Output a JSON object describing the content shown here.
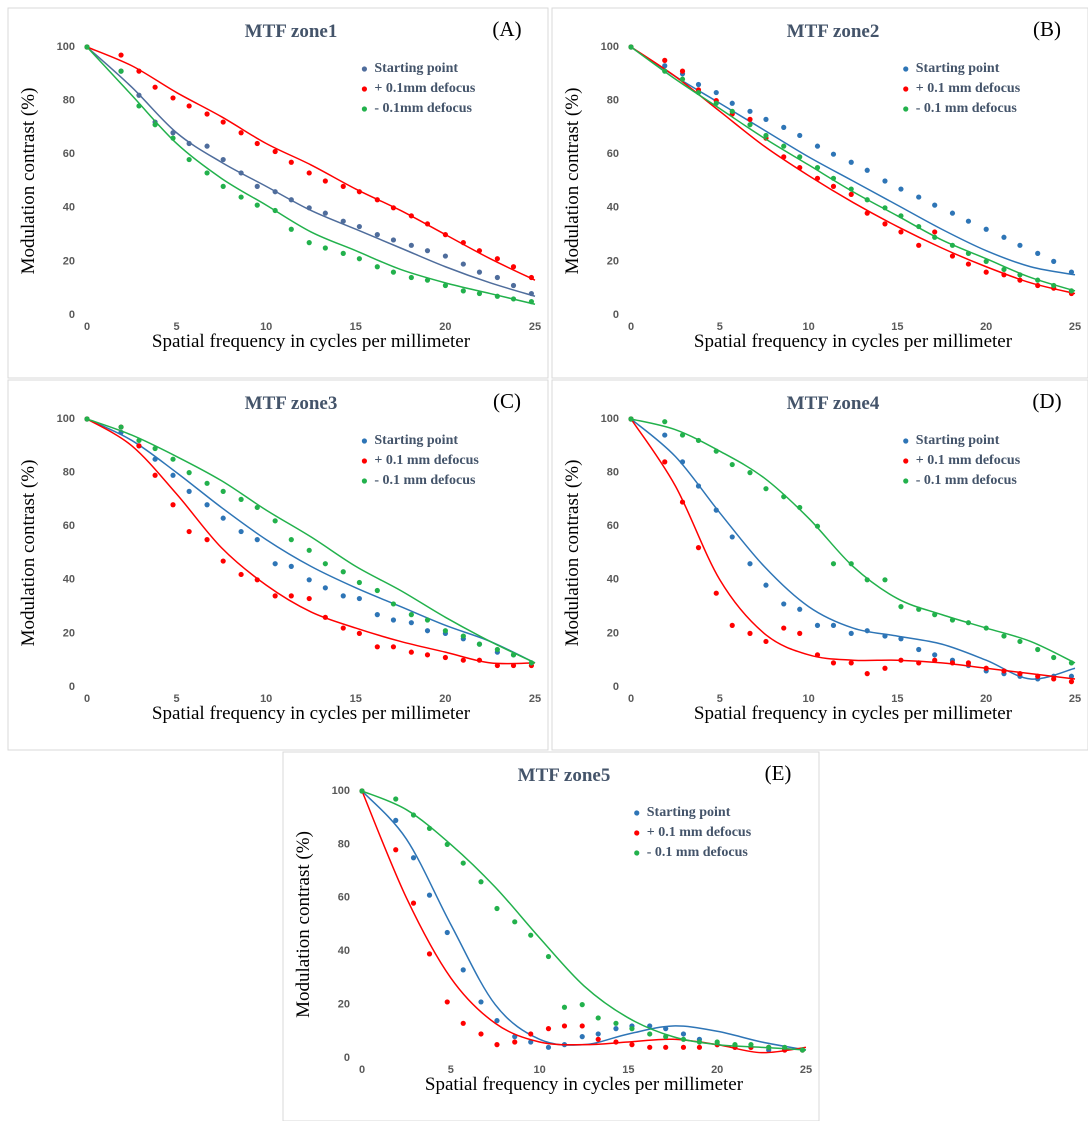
{
  "chart_data": [
    {
      "type": "scatter",
      "title": "MTF zone1",
      "label": "(A)",
      "x_label": "Spatial frequency in cycles per millimeter",
      "y_label": "Modulation contrast (%)",
      "xlim": [
        0,
        25
      ],
      "ylim": [
        0,
        100
      ],
      "xticks": [
        0,
        5,
        10,
        15,
        20,
        25
      ],
      "yticks": [
        0,
        20,
        40,
        60,
        80,
        100
      ],
      "x": [
        0,
        1.9,
        2.9,
        3.8,
        4.8,
        5.7,
        6.7,
        7.6,
        8.6,
        9.5,
        10.5,
        11.4,
        12.4,
        13.3,
        14.3,
        15.2,
        16.2,
        17.1,
        18.1,
        19.0,
        20.0,
        21.0,
        21.9,
        22.9,
        23.8,
        24.8
      ],
      "fit_x": [
        0,
        2.5,
        5,
        7.5,
        10,
        12.5,
        15,
        17.5,
        20,
        22.5,
        25
      ],
      "series": [
        {
          "name": "Starting point",
          "color": "#4f6d9c",
          "values": [
            100,
            91,
            82,
            72,
            68,
            64,
            63,
            58,
            53,
            48,
            46,
            43,
            40,
            38,
            35,
            33,
            30,
            28,
            26,
            24,
            22,
            19,
            16,
            14,
            11,
            8
          ],
          "fit": [
            100,
            85,
            68,
            57,
            48,
            39,
            32,
            25,
            18,
            12,
            7
          ]
        },
        {
          "name": "+ 0.1mm defocus",
          "color": "#ff0000",
          "values": [
            100,
            97,
            91,
            85,
            81,
            78,
            75,
            72,
            68,
            64,
            61,
            57,
            53,
            50,
            48,
            46,
            43,
            40,
            37,
            34,
            30,
            27,
            24,
            21,
            18,
            14
          ],
          "fit": [
            100,
            93,
            83,
            74,
            64,
            56,
            47,
            39,
            30,
            21,
            13
          ]
        },
        {
          "name": "- 0.1mm defocus",
          "color": "#22b14c",
          "values": [
            100,
            91,
            78,
            71,
            66,
            58,
            53,
            48,
            44,
            41,
            39,
            32,
            27,
            25,
            23,
            21,
            18,
            16,
            14,
            13,
            11,
            9,
            8,
            7,
            6,
            5
          ],
          "fit": [
            100,
            82,
            64,
            51,
            41,
            31,
            24,
            17,
            12,
            8,
            4
          ]
        }
      ]
    },
    {
      "type": "scatter",
      "title": "MTF zone2",
      "label": "(B)",
      "x_label": "Spatial frequency in cycles per millimeter",
      "y_label": "Modulation contrast (%)",
      "xlim": [
        0,
        25
      ],
      "ylim": [
        0,
        100
      ],
      "xticks": [
        0,
        5,
        10,
        15,
        20,
        25
      ],
      "yticks": [
        0,
        20,
        40,
        60,
        80,
        100
      ],
      "x": [
        0,
        1.9,
        2.9,
        3.8,
        4.8,
        5.7,
        6.7,
        7.6,
        8.6,
        9.5,
        10.5,
        11.4,
        12.4,
        13.3,
        14.3,
        15.2,
        16.2,
        17.1,
        18.1,
        19.0,
        20.0,
        21.0,
        21.9,
        22.9,
        23.8,
        24.8
      ],
      "fit_x": [
        0,
        2.5,
        5,
        7.5,
        10,
        12.5,
        15,
        17.5,
        20,
        22.5,
        25
      ],
      "series": [
        {
          "name": "Starting point",
          "color": "#2e75b6",
          "values": [
            100,
            93,
            90,
            86,
            83,
            79,
            76,
            73,
            70,
            67,
            63,
            60,
            57,
            54,
            50,
            47,
            44,
            41,
            38,
            35,
            32,
            29,
            26,
            23,
            20,
            16
          ],
          "fit": [
            100,
            89,
            79,
            69,
            59,
            50,
            41,
            32,
            24,
            18,
            15
          ]
        },
        {
          "name": "+ 0.1 mm defocus",
          "color": "#ff0000",
          "values": [
            100,
            95,
            91,
            84,
            80,
            75,
            73,
            66,
            59,
            55,
            51,
            48,
            45,
            38,
            34,
            31,
            26,
            31,
            22,
            19,
            16,
            15,
            13,
            11,
            10,
            8
          ],
          "fit": [
            100,
            89,
            76,
            63,
            52,
            42,
            33,
            25,
            18,
            12,
            8
          ]
        },
        {
          "name": "- 0.1 mm defocus",
          "color": "#22b14c",
          "values": [
            100,
            91,
            88,
            83,
            79,
            76,
            71,
            67,
            63,
            59,
            55,
            51,
            47,
            43,
            40,
            37,
            33,
            29,
            26,
            23,
            20,
            17,
            15,
            13,
            11,
            9
          ],
          "fit": [
            100,
            88,
            77,
            66,
            56,
            46,
            37,
            28,
            21,
            14,
            9
          ]
        }
      ]
    },
    {
      "type": "scatter",
      "title": "MTF zone3",
      "label": "(C)",
      "x_label": "Spatial frequency in cycles per millimeter",
      "y_label": "Modulation contrast (%)",
      "xlim": [
        0,
        25
      ],
      "ylim": [
        0,
        100
      ],
      "xticks": [
        0,
        5,
        10,
        15,
        20,
        25
      ],
      "yticks": [
        0,
        20,
        40,
        60,
        80,
        100
      ],
      "x": [
        0,
        1.9,
        2.9,
        3.8,
        4.8,
        5.7,
        6.7,
        7.6,
        8.6,
        9.5,
        10.5,
        11.4,
        12.4,
        13.3,
        14.3,
        15.2,
        16.2,
        17.1,
        18.1,
        19.0,
        20.0,
        21.0,
        21.9,
        22.9,
        23.8,
        24.8
      ],
      "fit_x": [
        0,
        2.5,
        5,
        7.5,
        10,
        12.5,
        15,
        17.5,
        20,
        22.5,
        25
      ],
      "series": [
        {
          "name": "Starting point",
          "color": "#2e75b6",
          "values": [
            100,
            95,
            90,
            85,
            79,
            73,
            68,
            63,
            58,
            55,
            46,
            45,
            40,
            37,
            34,
            33,
            27,
            25,
            24,
            21,
            20,
            18,
            16,
            13,
            12,
            9
          ],
          "fit": [
            100,
            92,
            80,
            67,
            55,
            45,
            37,
            30,
            23,
            17,
            9
          ]
        },
        {
          "name": "+ 0.1 mm defocus",
          "color": "#ff0000",
          "values": [
            100,
            97,
            90,
            79,
            68,
            58,
            55,
            47,
            42,
            40,
            34,
            34,
            33,
            26,
            22,
            20,
            15,
            15,
            13,
            12,
            11,
            10,
            10,
            8,
            8,
            8
          ],
          "fit": [
            100,
            90,
            72,
            52,
            38,
            28,
            22,
            17,
            13,
            9,
            9
          ]
        },
        {
          "name": "- 0.1 mm defocus",
          "color": "#22b14c",
          "values": [
            100,
            97,
            92,
            89,
            85,
            80,
            76,
            73,
            70,
            67,
            62,
            55,
            51,
            46,
            43,
            39,
            36,
            31,
            27,
            25,
            21,
            19,
            16,
            14,
            12,
            9
          ],
          "fit": [
            100,
            94,
            86,
            77,
            66,
            56,
            45,
            36,
            26,
            17,
            9
          ]
        }
      ]
    },
    {
      "type": "scatter",
      "title": "MTF zone4",
      "label": "(D)",
      "x_label": "Spatial frequency in cycles per millimeter",
      "y_label": "Modulation contrast (%)",
      "xlim": [
        0,
        25
      ],
      "ylim": [
        0,
        100
      ],
      "xticks": [
        0,
        5,
        10,
        15,
        20,
        25
      ],
      "yticks": [
        0,
        20,
        40,
        60,
        80,
        100
      ],
      "x": [
        0,
        1.9,
        2.9,
        3.8,
        4.8,
        5.7,
        6.7,
        7.6,
        8.6,
        9.5,
        10.5,
        11.4,
        12.4,
        13.3,
        14.3,
        15.2,
        16.2,
        17.1,
        18.1,
        19.0,
        20.0,
        21.0,
        21.9,
        22.9,
        23.8,
        24.8
      ],
      "fit_x": [
        0,
        2.5,
        5,
        7.5,
        10,
        12.5,
        15,
        17.5,
        20,
        22.5,
        25
      ],
      "series": [
        {
          "name": "Starting point",
          "color": "#2e75b6",
          "values": [
            100,
            94,
            84,
            75,
            66,
            56,
            46,
            38,
            31,
            29,
            23,
            23,
            20,
            21,
            19,
            18,
            14,
            12,
            10,
            8,
            6,
            5,
            4,
            3,
            4,
            4
          ],
          "fit": [
            100,
            86,
            65,
            45,
            30,
            22,
            19,
            16,
            10,
            3,
            7
          ]
        },
        {
          "name": "+ 0.1 mm defocus",
          "color": "#ff0000",
          "values": [
            100,
            84,
            69,
            52,
            35,
            23,
            20,
            17,
            22,
            20,
            12,
            9,
            9,
            5,
            7,
            10,
            9,
            10,
            9,
            9,
            7,
            6,
            5,
            4,
            3,
            2
          ],
          "fit": [
            100,
            75,
            40,
            20,
            12,
            10,
            10,
            9,
            7,
            5,
            3
          ]
        },
        {
          "name": "- 0.1 mm defocus",
          "color": "#22b14c",
          "values": [
            100,
            99,
            94,
            92,
            88,
            83,
            80,
            74,
            71,
            67,
            60,
            46,
            46,
            40,
            40,
            30,
            29,
            27,
            25,
            24,
            22,
            19,
            17,
            14,
            11,
            9
          ],
          "fit": [
            100,
            96,
            88,
            78,
            63,
            45,
            33,
            27,
            22,
            17,
            9
          ]
        }
      ]
    },
    {
      "type": "scatter",
      "title": "MTF zone5",
      "label": "(E)",
      "x_label": "Spatial frequency in cycles per millimeter",
      "y_label": "Modulation contrast (%)",
      "xlim": [
        0,
        25
      ],
      "ylim": [
        0,
        100
      ],
      "xticks": [
        0,
        5,
        10,
        15,
        20,
        25
      ],
      "yticks": [
        0,
        20,
        40,
        60,
        80,
        100
      ],
      "x": [
        0,
        1.9,
        2.9,
        3.8,
        4.8,
        5.7,
        6.7,
        7.6,
        8.6,
        9.5,
        10.5,
        11.4,
        12.4,
        13.3,
        14.3,
        15.2,
        16.2,
        17.1,
        18.1,
        19.0,
        20.0,
        21.0,
        21.9,
        22.9,
        23.8,
        24.8
      ],
      "fit_x": [
        0,
        2.5,
        5,
        7.5,
        10,
        12.5,
        15,
        17.5,
        20,
        22.5,
        25
      ],
      "series": [
        {
          "name": "Starting point",
          "color": "#2e75b6",
          "values": [
            100,
            89,
            75,
            61,
            47,
            33,
            21,
            14,
            8,
            6,
            4,
            5,
            8,
            9,
            11,
            12,
            12,
            11,
            9,
            7,
            5,
            4,
            4,
            3,
            3,
            3
          ],
          "fit": [
            100,
            82,
            50,
            20,
            7,
            5,
            9,
            12,
            10,
            6,
            3
          ]
        },
        {
          "name": "+ 0.1 mm defocus",
          "color": "#ff0000",
          "values": [
            100,
            78,
            58,
            39,
            21,
            13,
            9,
            5,
            6,
            9,
            11,
            12,
            12,
            7,
            6,
            5,
            4,
            4,
            4,
            4,
            5,
            4,
            4,
            4,
            3,
            3
          ],
          "fit": [
            100,
            60,
            30,
            13,
            6,
            5,
            6,
            7,
            5,
            2,
            4
          ]
        },
        {
          "name": "- 0.1 mm defocus",
          "color": "#22b14c",
          "values": [
            100,
            97,
            91,
            86,
            80,
            73,
            66,
            56,
            51,
            46,
            38,
            19,
            20,
            15,
            13,
            11,
            9,
            8,
            7,
            6,
            6,
            5,
            5,
            4,
            4,
            3
          ],
          "fit": [
            100,
            93,
            80,
            64,
            45,
            27,
            15,
            8,
            5,
            4,
            3
          ]
        }
      ]
    }
  ]
}
